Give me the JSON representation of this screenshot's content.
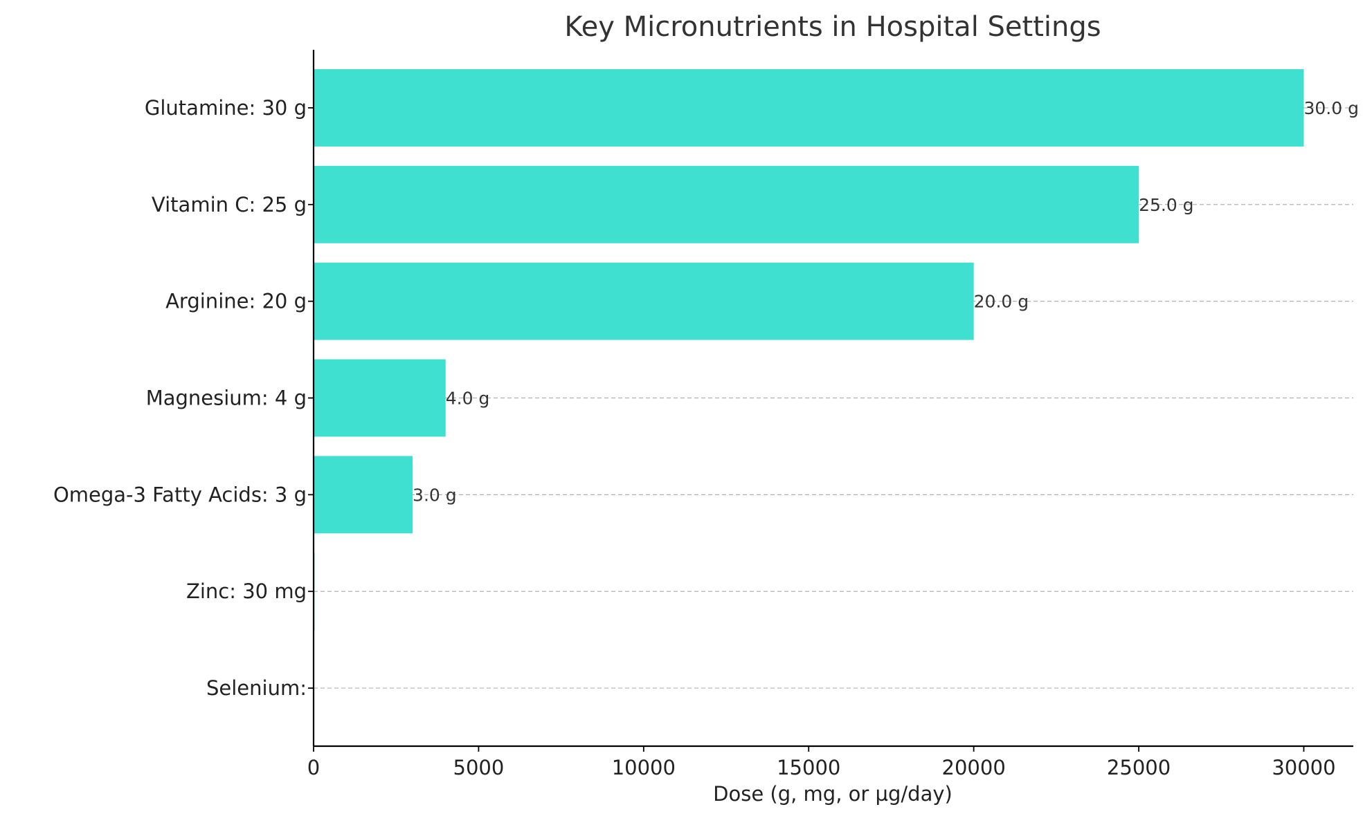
{
  "chart_data": {
    "type": "bar",
    "orientation": "horizontal",
    "title": "Key Micronutrients in Hospital Settings",
    "xlabel": "Dose (g, mg, or µg/day)",
    "ylabel": "",
    "xlim": [
      0,
      31500
    ],
    "xticks": [
      0,
      5000,
      10000,
      15000,
      20000,
      25000,
      30000
    ],
    "grid": "y-dashed",
    "bar_color": "#40E0D0",
    "categories": [
      "Glutamine: 30 g",
      "Vitamin C: 25 g",
      "Arginine: 20 g",
      "Magnesium: 4 g",
      "Omega-3 Fatty Acids: 3 g",
      "Zinc: 30 mg",
      "Selenium: "
    ],
    "values": [
      30000,
      25000,
      20000,
      4000,
      3000,
      30,
      0
    ],
    "data_labels": [
      "30.0 g",
      "25.0 g",
      "20.0 g",
      "4.0 g",
      "3.0 g",
      "",
      ""
    ]
  }
}
